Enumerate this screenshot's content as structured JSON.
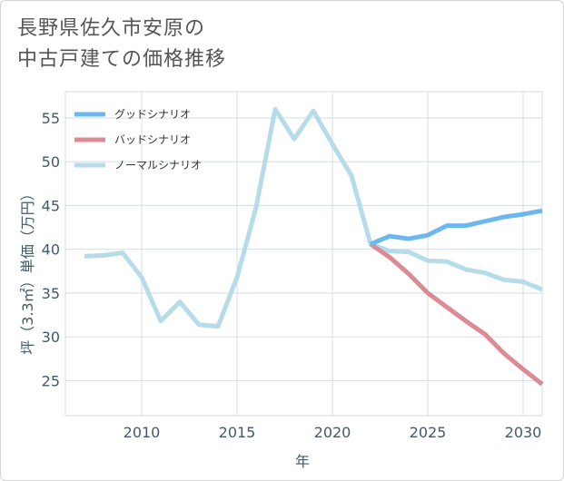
{
  "title": "長野県佐久市安原の\n中古戸建ての価格推移",
  "chart_data": {
    "type": "line",
    "title": "長野県佐久市安原の中古戸建ての価格推移",
    "xlabel": "年",
    "ylabel": "坪（3.3㎡）単価（万円）",
    "xlim": [
      2006,
      2031
    ],
    "ylim": [
      21,
      58
    ],
    "x_ticks": [
      2010,
      2015,
      2020,
      2025,
      2030
    ],
    "y_ticks": [
      25,
      30,
      35,
      40,
      45,
      50,
      55
    ],
    "grid": true,
    "legend_position": "top-left",
    "series": [
      {
        "name": "グッドシナリオ",
        "color": "#6bb8ef",
        "x": [
          2022,
          2023,
          2024,
          2025,
          2026,
          2027,
          2028,
          2029,
          2030,
          2031
        ],
        "values": [
          40.6,
          41.5,
          41.2,
          41.6,
          42.7,
          42.7,
          43.2,
          43.7,
          44.0,
          44.4
        ]
      },
      {
        "name": "バッドシナリオ",
        "color": "#dc8a94",
        "x": [
          2022,
          2023,
          2024,
          2025,
          2026,
          2027,
          2028,
          2029,
          2030,
          2031
        ],
        "values": [
          40.6,
          39.1,
          37.2,
          35.0,
          33.4,
          31.8,
          30.3,
          28.1,
          26.3,
          24.6
        ]
      },
      {
        "name": "ノーマルシナリオ",
        "color": "#b6dcea",
        "x": [
          2007,
          2008,
          2009,
          2010,
          2011,
          2012,
          2013,
          2014,
          2015,
          2016,
          2017,
          2018,
          2019,
          2020,
          2021,
          2022,
          2023,
          2024,
          2025,
          2026,
          2027,
          2028,
          2029,
          2030,
          2031
        ],
        "values": [
          39.2,
          39.3,
          39.6,
          36.8,
          31.8,
          34.0,
          31.4,
          31.2,
          36.8,
          44.8,
          56.0,
          52.6,
          55.8,
          52.0,
          48.4,
          40.6,
          39.8,
          39.7,
          38.7,
          38.6,
          37.7,
          37.3,
          36.5,
          36.3,
          35.4
        ]
      }
    ]
  }
}
